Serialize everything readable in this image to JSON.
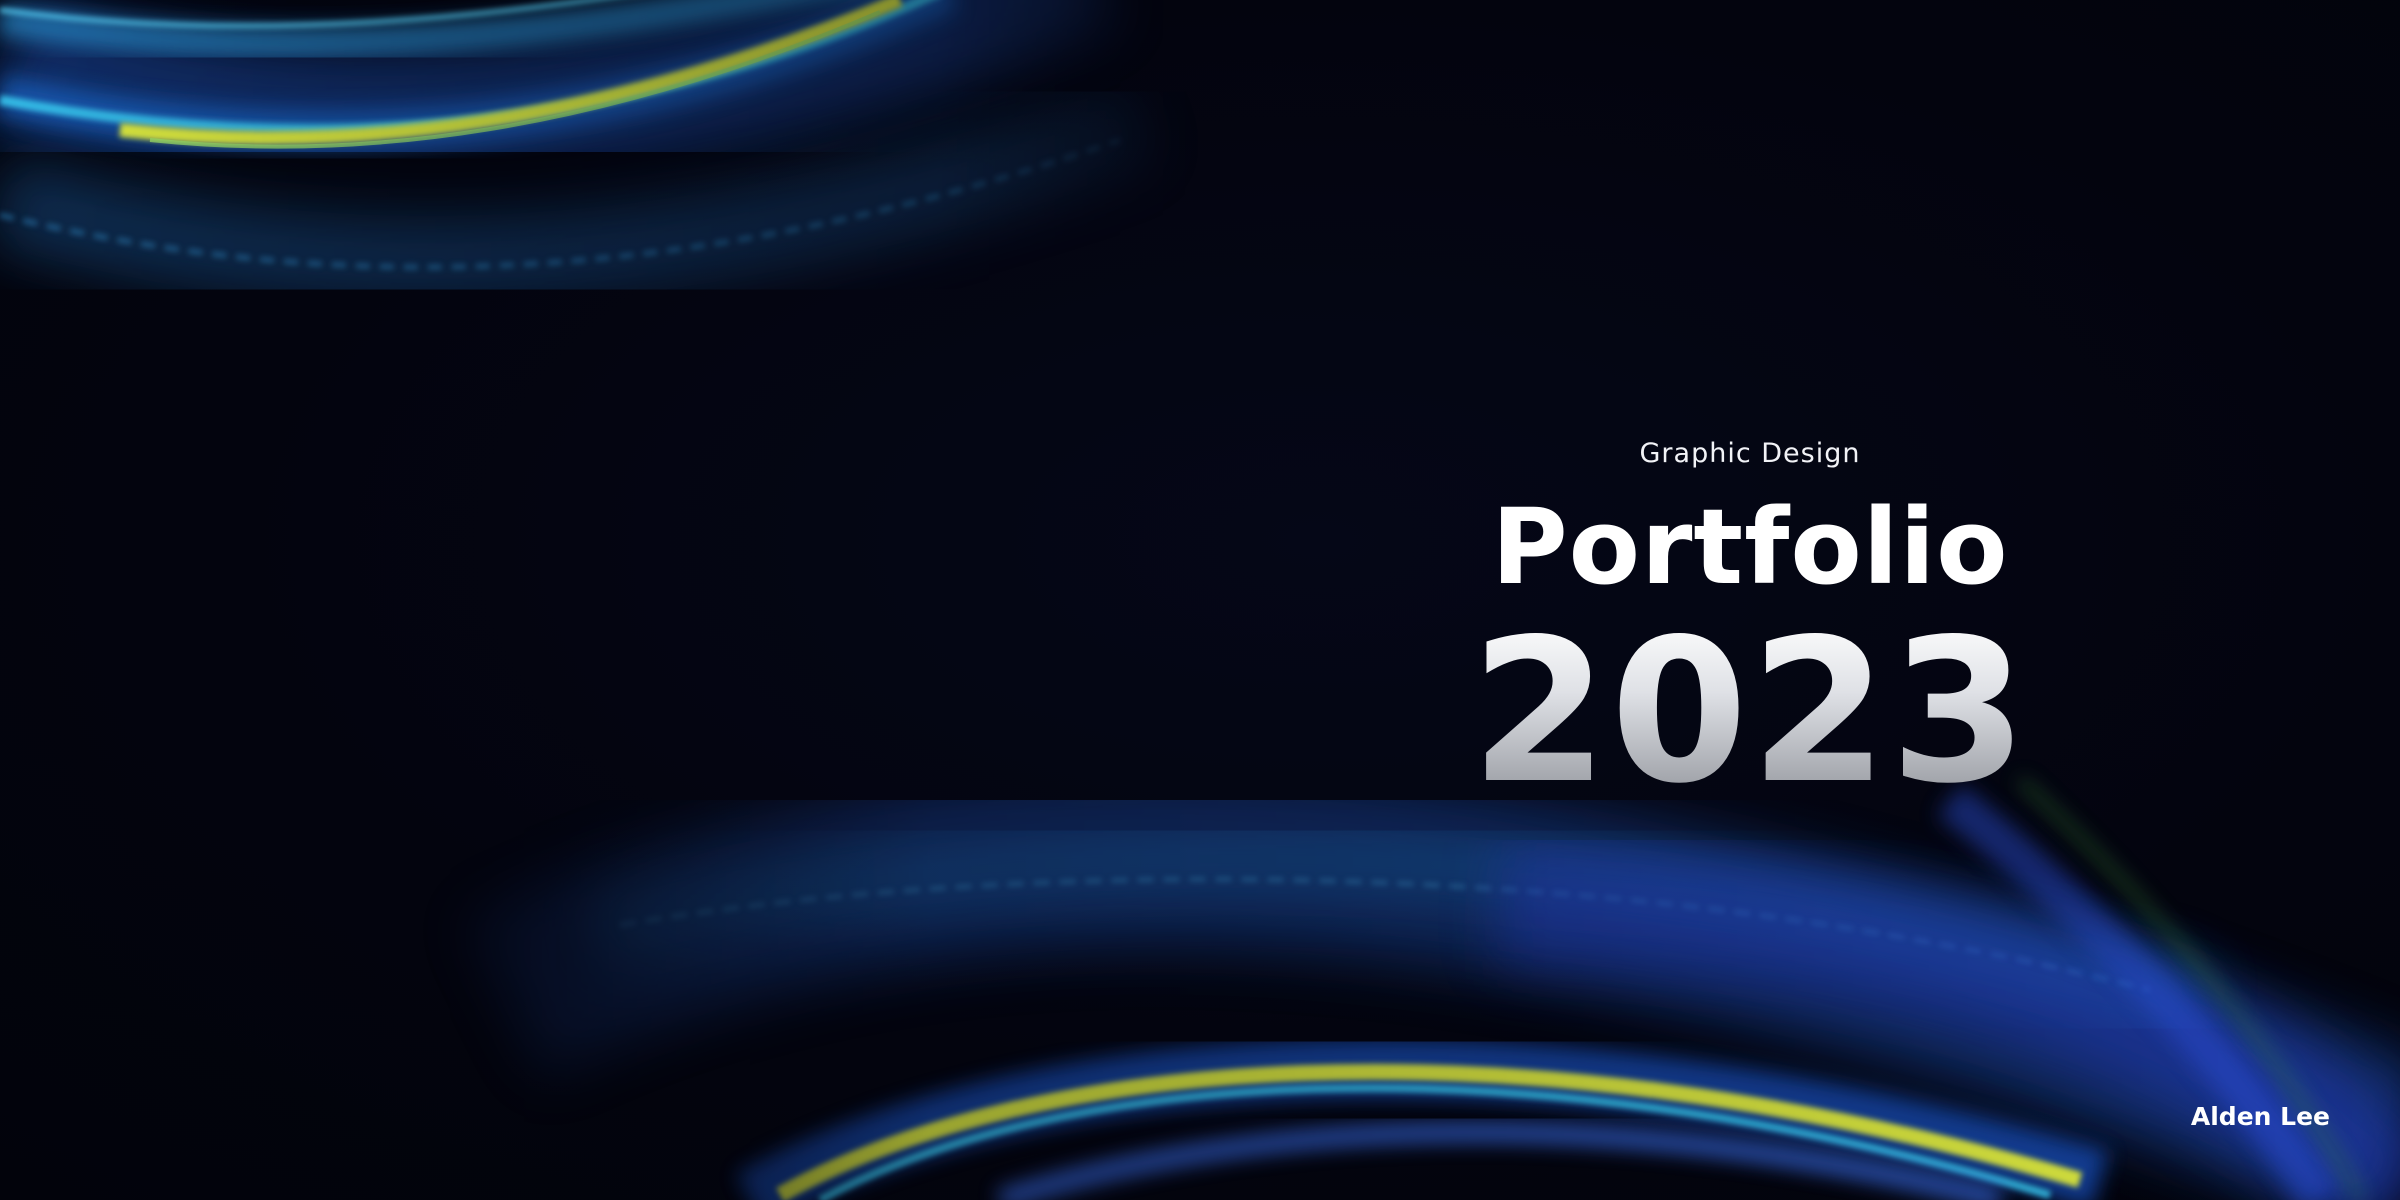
{
  "cover": {
    "subtitle": "Graphic Design",
    "title": "Portfolio",
    "year": "2023",
    "author": "Alden Lee"
  },
  "colors": {
    "background": "#03040f",
    "wave_blue": "#2a6fe6",
    "wave_cyan": "#38c8f0",
    "wave_yellow": "#e6f23a",
    "text": "#ffffff"
  }
}
